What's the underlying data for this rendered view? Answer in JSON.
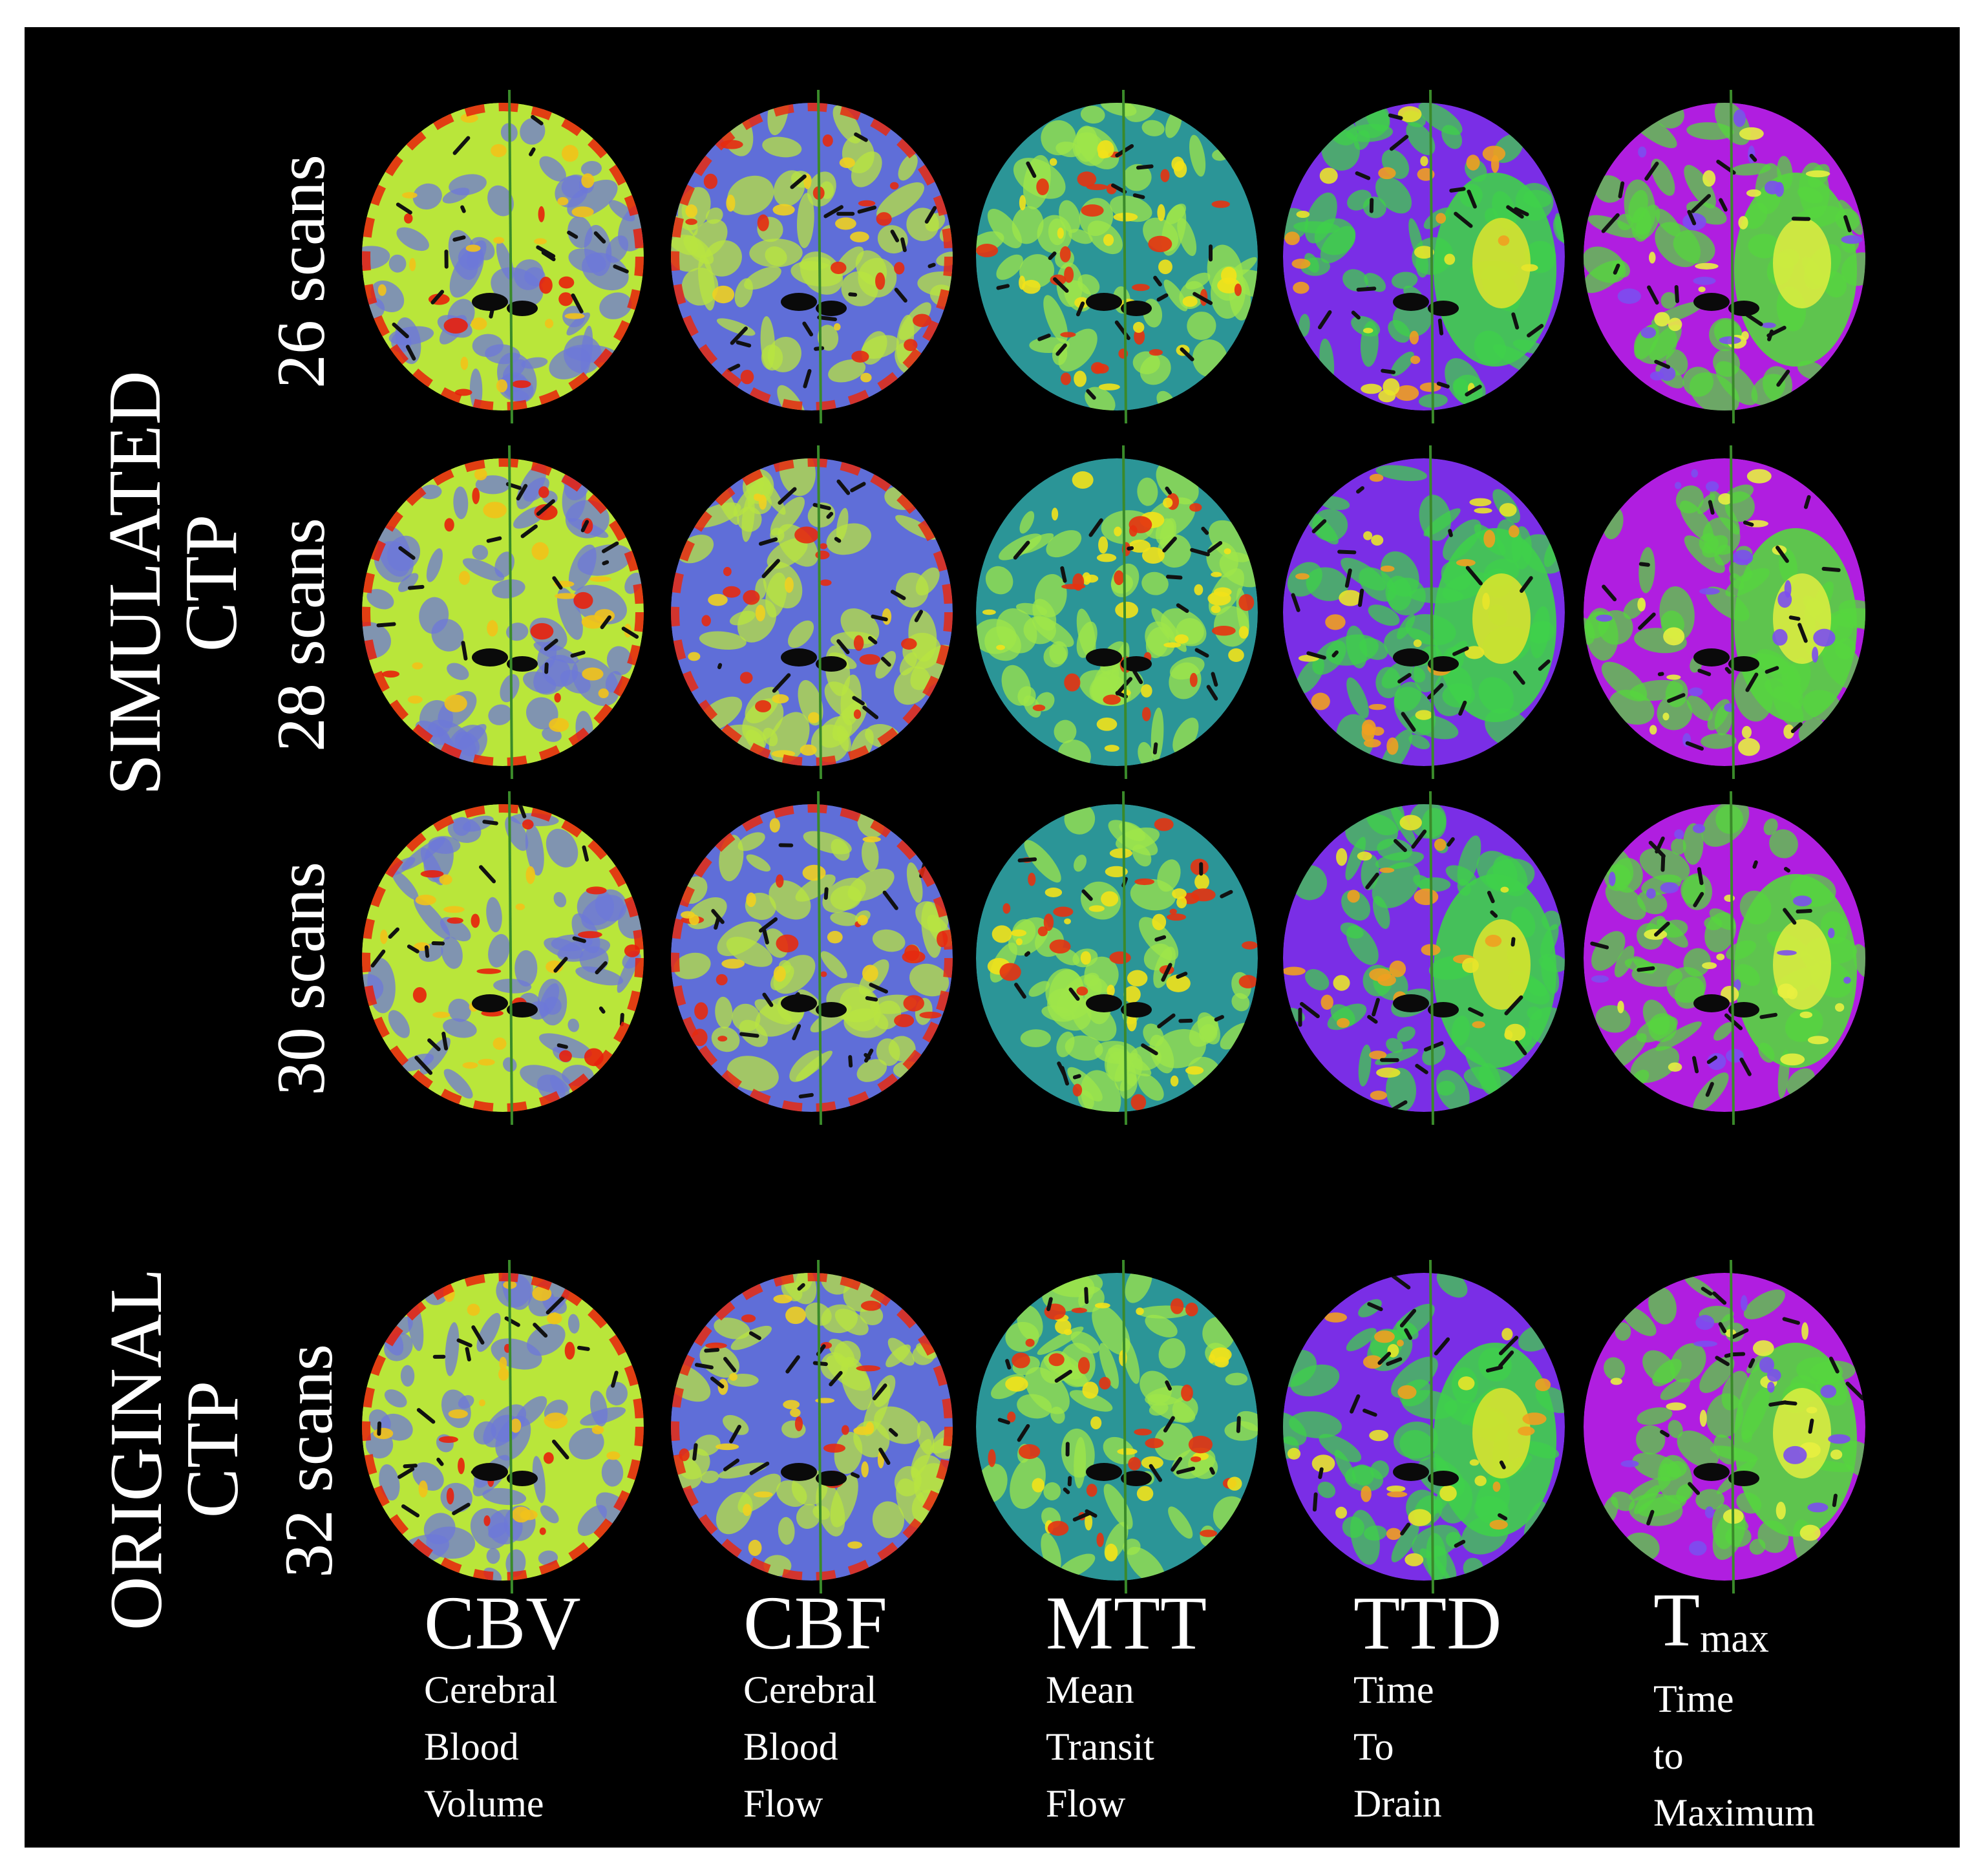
{
  "groups": [
    {
      "label_line1": "SIMULATED",
      "label_line2": "CTP"
    },
    {
      "label_line1": "ORIGINAL",
      "label_line2": "CTP"
    }
  ],
  "rows": [
    {
      "label": "26 scans",
      "group": "SIMULATED CTP"
    },
    {
      "label": "28 scans",
      "group": "SIMULATED CTP"
    },
    {
      "label": "30 scans",
      "group": "SIMULATED CTP"
    },
    {
      "label": "32 scans",
      "group": "ORIGINAL CTP"
    }
  ],
  "columns": [
    {
      "abbr": "CBV",
      "abbr_sub": "",
      "desc": [
        "Cerebral",
        "Blood",
        "Volume"
      ],
      "colormap": "green-yellow-red"
    },
    {
      "abbr": "CBF",
      "abbr_sub": "",
      "desc": [
        "Cerebral",
        "Blood",
        "Flow"
      ],
      "colormap": "blue-yellow-red"
    },
    {
      "abbr": "MTT",
      "abbr_sub": "",
      "desc": [
        "Mean",
        "Transit",
        "Flow"
      ],
      "colormap": "teal-yellow-red"
    },
    {
      "abbr": "TTD",
      "abbr_sub": "",
      "desc": [
        "Time",
        "To",
        "Drain"
      ],
      "colormap": "purple-green-yellow"
    },
    {
      "abbr": "T",
      "abbr_sub": "max",
      "desc": [
        "Time",
        "to",
        "Maximum"
      ],
      "colormap": "magenta-green-yellow"
    }
  ],
  "colors": {
    "background": "#000000",
    "border": "#ffffff",
    "text": "#ffffff",
    "midline": "#3a8a2a"
  }
}
